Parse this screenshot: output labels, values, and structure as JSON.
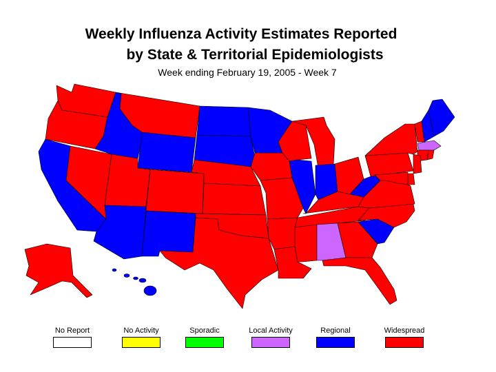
{
  "title_line1": "Weekly Influenza Activity Estimates Reported",
  "title_line2": "by State & Territorial Epidemiologists",
  "subtitle": "Week ending February 19, 2005 - Week 7",
  "colors": {
    "no_report": "#ffffff",
    "no_activity": "#ffff00",
    "sporadic": "#00ff00",
    "local": "#cc66ff",
    "regional": "#0000ff",
    "widespread": "#ff0000"
  },
  "legend": [
    {
      "label": "No Report",
      "color": "#ffffff"
    },
    {
      "label": "No Activity",
      "color": "#ffff00"
    },
    {
      "label": "Sporadic",
      "color": "#00ff00"
    },
    {
      "label": "Local Activity",
      "color": "#cc66ff"
    },
    {
      "label": "Regional",
      "color": "#0000ff"
    },
    {
      "label": "Widespread",
      "color": "#ff0000"
    }
  ],
  "state_activity": {
    "WA": "widespread",
    "OR": "widespread",
    "CA": "regional",
    "NV": "widespread",
    "ID": "regional",
    "MT": "widespread",
    "WY": "regional",
    "UT": "widespread",
    "AZ": "regional",
    "CO": "widespread",
    "NM": "regional",
    "ND": "regional",
    "SD": "regional",
    "NE": "widespread",
    "KS": "widespread",
    "OK": "widespread",
    "TX": "widespread",
    "MN": "regional",
    "IA": "widespread",
    "MO": "widespread",
    "AR": "widespread",
    "LA": "widespread",
    "WI": "widespread",
    "IL": "regional",
    "MI": "widespread",
    "IN": "regional",
    "OH": "widespread",
    "KY": "widespread",
    "TN": "widespread",
    "MS": "widespread",
    "AL": "local",
    "GA": "widespread",
    "FL": "widespread",
    "SC": "regional",
    "NC": "widespread",
    "VA": "widespread",
    "WV": "regional",
    "PA": "widespread",
    "NY": "widespread",
    "VT": "widespread",
    "NH": "regional",
    "ME": "regional",
    "MA": "local",
    "CT": "widespread",
    "RI": "widespread",
    "NJ": "widespread",
    "DE": "widespread",
    "MD": "widespread",
    "AK": "widespread",
    "HI": "regional"
  }
}
